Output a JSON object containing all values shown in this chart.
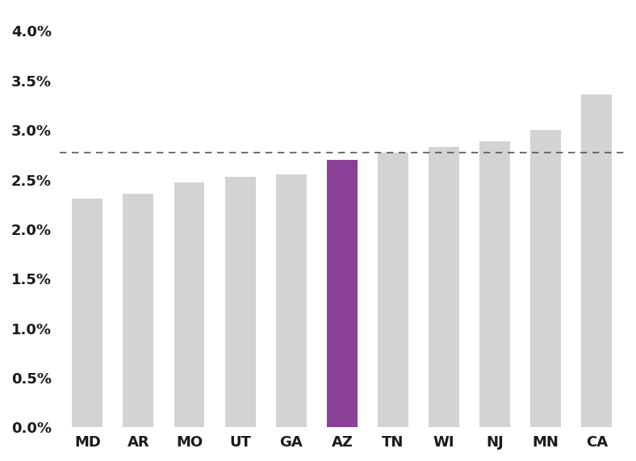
{
  "categories": [
    "MD",
    "AR",
    "MO",
    "UT",
    "GA",
    "AZ",
    "TN",
    "WI",
    "NJ",
    "MN",
    "CA"
  ],
  "values": [
    0.0231,
    0.0236,
    0.0247,
    0.0253,
    0.0255,
    0.027,
    0.0277,
    0.0283,
    0.0289,
    0.03,
    0.0336
  ],
  "bar_colors": [
    "#d3d3d3",
    "#d3d3d3",
    "#d3d3d3",
    "#d3d3d3",
    "#d3d3d3",
    "#8b4098",
    "#d3d3d3",
    "#d3d3d3",
    "#d3d3d3",
    "#d3d3d3",
    "#d3d3d3"
  ],
  "dashed_line_value": 0.0277,
  "dashed_line_color": "#555555",
  "ylim": [
    0.0,
    0.042
  ],
  "yticks": [
    0.0,
    0.005,
    0.01,
    0.015,
    0.02,
    0.025,
    0.03,
    0.035,
    0.04
  ],
  "ytick_labels": [
    "0.0%",
    "0.5%",
    "1.0%",
    "1.5%",
    "2.0%",
    "2.5%",
    "3.0%",
    "3.5%",
    "4.0%"
  ],
  "background_color": "#ffffff",
  "bar_width": 0.6,
  "font_color": "#1a1a1a",
  "tick_fontsize": 13,
  "tick_fontweight": "bold"
}
